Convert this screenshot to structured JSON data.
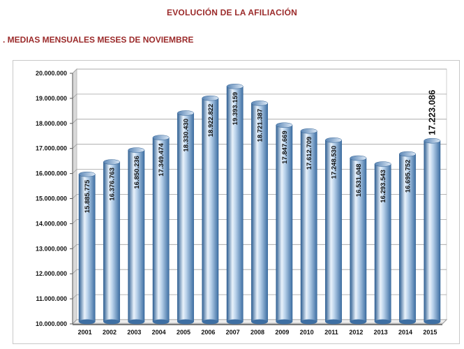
{
  "page": {
    "title": "EVOLUCIÓN DE LA AFILIACIÓN",
    "subtitle": ". MEDIAS MENSUALES MESES DE NOVIEMBRE"
  },
  "colors": {
    "title": "#9b2a2a",
    "bar_light": "#e9f2fb",
    "bar_mid": "#8fb5dd",
    "bar_dark": "#2f5f92",
    "grid": "#a0a0a0"
  },
  "chart_data": {
    "type": "bar",
    "title": "",
    "xlabel": "",
    "ylabel": "",
    "ylim": [
      10000000,
      20000000
    ],
    "ytick_step": 1000000,
    "grid": true,
    "style": "3d-cylinder",
    "categories": [
      "2001",
      "2002",
      "2003",
      "2004",
      "2005",
      "2006",
      "2007",
      "2008",
      "2009",
      "2010",
      "2011",
      "2012",
      "2013",
      "2014",
      "2015"
    ],
    "values": [
      15885775,
      16376763,
      16850236,
      17349474,
      18330430,
      18922822,
      19393159,
      18721387,
      17847669,
      17612709,
      17248530,
      16531048,
      16293543,
      16695752,
      17223086
    ],
    "yticks": [
      "10.000.000",
      "11.000.000",
      "12.000.000",
      "13.000.000",
      "14.000.000",
      "15.000.000",
      "16.000.000",
      "17.000.000",
      "18.000.000",
      "19.000.000",
      "20.000.000"
    ],
    "data_labels": [
      "15.885.775",
      "16.376.763",
      "16.850.236",
      "17.349.474",
      "18.330.430",
      "18.922.822",
      "19.393.159",
      "18.721.387",
      "17.847.669",
      "17.612.709",
      "17.248.530",
      "16.531.048",
      "16.293.543",
      "16.695.752",
      "17.223.086"
    ],
    "highlight_index": 14
  }
}
